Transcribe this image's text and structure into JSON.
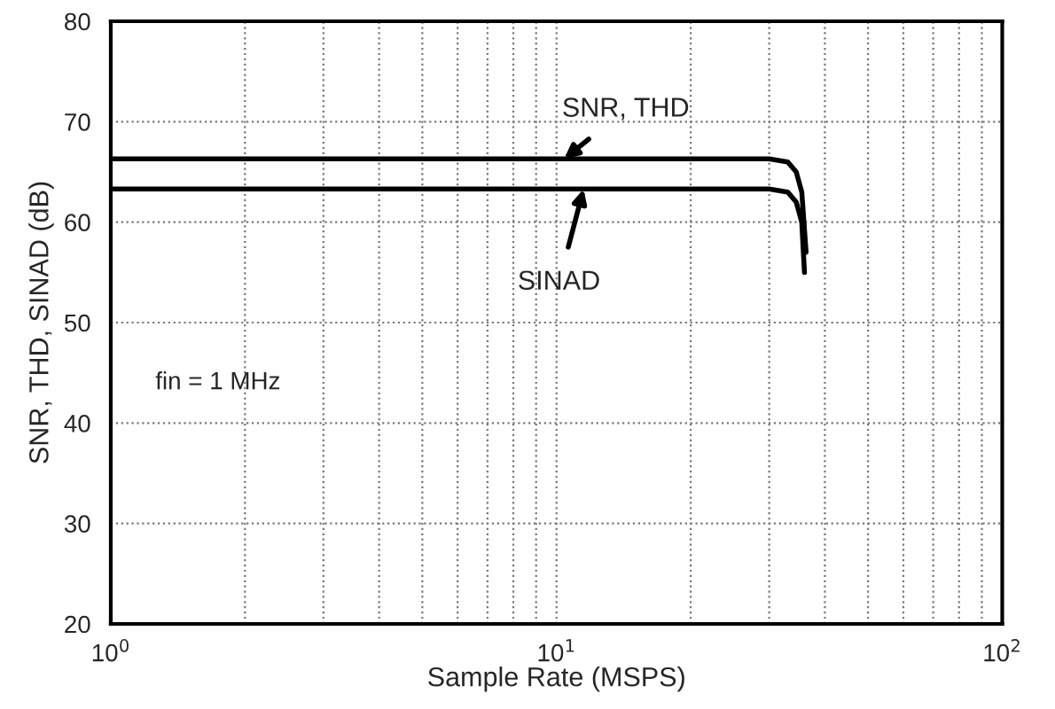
{
  "chart_data": {
    "type": "line",
    "xlabel": "Sample Rate (MSPS)",
    "ylabel": "SNR, THD, SINAD (dB)",
    "log": "x",
    "grid": true,
    "legend": false,
    "marker": "none",
    "line_style": "solid",
    "xlim": [
      1,
      100
    ],
    "xticks": [
      {
        "value": 1,
        "label": "10$^{0}$"
      },
      {
        "value": 10,
        "label": "10$^{1}$"
      },
      {
        "value": 100,
        "label": "10$^{2}$"
      }
    ],
    "ylim": [
      20,
      80
    ],
    "yticks": [
      20,
      30,
      40,
      50,
      60,
      70,
      80
    ],
    "series": [
      {
        "color": "#000000",
        "x": [
          1,
          10,
          30,
          33,
          34.5,
          35.5,
          36.3
        ],
        "values": [
          66.3,
          66.3,
          66.3,
          66,
          65,
          63,
          57
        ]
      },
      {
        "color": "#000000",
        "x": [
          1,
          10,
          30,
          33,
          34.5,
          35.5,
          36
        ],
        "values": [
          63.3,
          63.3,
          63.3,
          63,
          62,
          60,
          55
        ]
      }
    ],
    "annotations": [
      {
        "text": "SNR, THD",
        "x": 10.4,
        "y": 66.3
      },
      {
        "text": "SINAD",
        "x": 11.5,
        "y": 63.3
      },
      "fin = 1 MHz"
    ]
  }
}
